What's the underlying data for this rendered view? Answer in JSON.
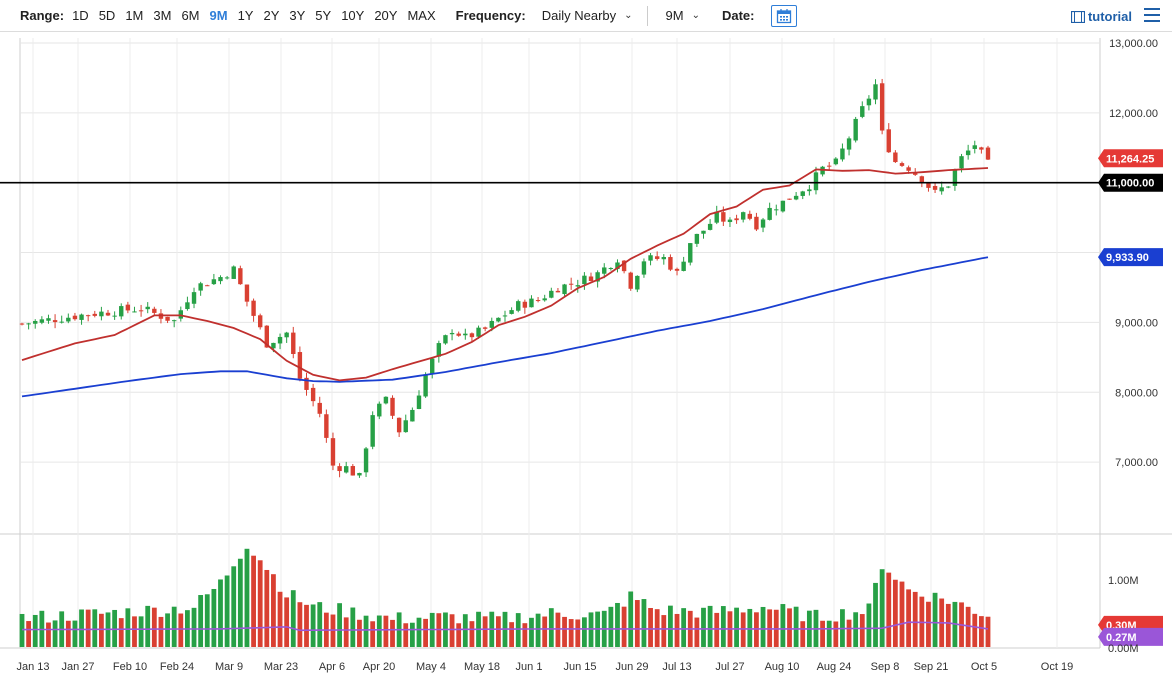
{
  "toolbar": {
    "range_label": "Range:",
    "ranges": [
      "1D",
      "5D",
      "1M",
      "3M",
      "6M",
      "9M",
      "1Y",
      "2Y",
      "3Y",
      "5Y",
      "10Y",
      "20Y",
      "MAX"
    ],
    "active_range": "9M",
    "frequency_label": "Frequency:",
    "frequency_value": "Daily Nearby",
    "period_value": "9M",
    "date_label": "Date:",
    "tutorial_label": "tutorial",
    "accent_color": "#2f7ed8"
  },
  "chart_data": {
    "type": "candlestick",
    "y_ticks": [
      "13,000.00",
      "12,000.00",
      "9,000.00",
      "8,000.00",
      "7,000.00"
    ],
    "y_range": [
      6300,
      13000
    ],
    "x_ticks": [
      "Jan 13",
      "Jan 27",
      "Feb 10",
      "Feb 24",
      "Mar 9",
      "Mar 23",
      "Apr 6",
      "Apr 20",
      "May 4",
      "May 18",
      "Jun 1",
      "Jun 15",
      "Jun 29",
      "Jul 13",
      "Jul 27",
      "Aug 10",
      "Aug 24",
      "Sep 8",
      "Sep 21",
      "Oct 5",
      "Oct 19"
    ],
    "price_path": [
      [
        0,
        8980
      ],
      [
        10,
        9120
      ],
      [
        18,
        9200
      ],
      [
        23,
        9020
      ],
      [
        26,
        9500
      ],
      [
        30,
        9650
      ],
      [
        32,
        9760
      ],
      [
        34,
        9300
      ],
      [
        37,
        8700
      ],
      [
        40,
        8850
      ],
      [
        42,
        8200
      ],
      [
        45,
        7700
      ],
      [
        47,
        6950
      ],
      [
        49,
        6920
      ],
      [
        51,
        6780
      ],
      [
        53,
        7700
      ],
      [
        55,
        7880
      ],
      [
        57,
        7450
      ],
      [
        59,
        7760
      ],
      [
        61,
        8250
      ],
      [
        63,
        8650
      ],
      [
        65,
        8900
      ],
      [
        67,
        8780
      ],
      [
        70,
        8900
      ],
      [
        72,
        9050
      ],
      [
        75,
        9250
      ],
      [
        78,
        9320
      ],
      [
        81,
        9500
      ],
      [
        84,
        9580
      ],
      [
        87,
        9700
      ],
      [
        90,
        9920
      ],
      [
        92,
        9540
      ],
      [
        94,
        9900
      ],
      [
        97,
        9920
      ],
      [
        99,
        9700
      ],
      [
        101,
        10150
      ],
      [
        103,
        10320
      ],
      [
        105,
        10520
      ],
      [
        107,
        10420
      ],
      [
        109,
        10600
      ],
      [
        111,
        10400
      ],
      [
        113,
        10620
      ],
      [
        115,
        10720
      ],
      [
        117,
        10850
      ],
      [
        119,
        10970
      ],
      [
        121,
        11200
      ],
      [
        123,
        11280
      ],
      [
        125,
        11650
      ],
      [
        127,
        12050
      ],
      [
        129,
        12400
      ],
      [
        130,
        11700
      ],
      [
        132,
        11300
      ],
      [
        134,
        11220
      ],
      [
        136,
        11050
      ],
      [
        138,
        10850
      ],
      [
        140,
        10980
      ],
      [
        142,
        11350
      ],
      [
        144,
        11550
      ],
      [
        146,
        11264
      ]
    ],
    "ma50": [
      [
        0,
        8460
      ],
      [
        8,
        8700
      ],
      [
        14,
        8820
      ],
      [
        20,
        9100
      ],
      [
        24,
        9100
      ],
      [
        28,
        9020
      ],
      [
        32,
        8920
      ],
      [
        36,
        8760
      ],
      [
        40,
        8450
      ],
      [
        44,
        8250
      ],
      [
        48,
        8170
      ],
      [
        52,
        8210
      ],
      [
        56,
        8330
      ],
      [
        60,
        8440
      ],
      [
        64,
        8550
      ],
      [
        68,
        8720
      ],
      [
        72,
        8960
      ],
      [
        76,
        9080
      ],
      [
        80,
        9240
      ],
      [
        84,
        9490
      ],
      [
        88,
        9650
      ],
      [
        92,
        9910
      ],
      [
        96,
        10100
      ],
      [
        100,
        10270
      ],
      [
        104,
        10550
      ],
      [
        108,
        10660
      ],
      [
        112,
        10900
      ],
      [
        116,
        10960
      ],
      [
        120,
        11190
      ],
      [
        124,
        11170
      ],
      [
        128,
        11180
      ],
      [
        132,
        11130
      ],
      [
        136,
        11150
      ],
      [
        140,
        11180
      ],
      [
        146,
        11210
      ]
    ],
    "ma200": [
      [
        0,
        7940
      ],
      [
        8,
        8050
      ],
      [
        16,
        8160
      ],
      [
        24,
        8260
      ],
      [
        30,
        8300
      ],
      [
        34,
        8300
      ],
      [
        40,
        8200
      ],
      [
        44,
        8160
      ],
      [
        48,
        8150
      ],
      [
        56,
        8180
      ],
      [
        64,
        8290
      ],
      [
        72,
        8430
      ],
      [
        80,
        8560
      ],
      [
        88,
        8720
      ],
      [
        96,
        8880
      ],
      [
        104,
        9020
      ],
      [
        112,
        9190
      ],
      [
        120,
        9390
      ],
      [
        128,
        9580
      ],
      [
        136,
        9750
      ],
      [
        146,
        9934
      ]
    ],
    "last_price_label": "11,264.25",
    "ma50_label": "11,000.00",
    "ma200_label": "9,933.90",
    "reference_line": 11000,
    "volume_ticks": [
      "1.00M",
      "0.00M"
    ],
    "volume_label": "0.27M",
    "volume_hidden_label": "0.30M",
    "volume_max": 1.55,
    "volume_path": [
      [
        0,
        0.43
      ],
      [
        20,
        0.55
      ],
      [
        26,
        0.6
      ],
      [
        30,
        0.95
      ],
      [
        34,
        1.55
      ],
      [
        37,
        1.2
      ],
      [
        40,
        0.8
      ],
      [
        44,
        0.6
      ],
      [
        48,
        0.55
      ],
      [
        56,
        0.42
      ],
      [
        64,
        0.45
      ],
      [
        72,
        0.42
      ],
      [
        80,
        0.5
      ],
      [
        88,
        0.48
      ],
      [
        92,
        0.75
      ],
      [
        96,
        0.55
      ],
      [
        104,
        0.52
      ],
      [
        112,
        0.6
      ],
      [
        120,
        0.45
      ],
      [
        128,
        0.55
      ],
      [
        130,
        1.25
      ],
      [
        134,
        0.85
      ],
      [
        140,
        0.7
      ],
      [
        146,
        0.48
      ]
    ],
    "volume_avg_path": [
      [
        0,
        0.26
      ],
      [
        30,
        0.27
      ],
      [
        40,
        0.3
      ],
      [
        42,
        0.25
      ],
      [
        60,
        0.26
      ],
      [
        80,
        0.27
      ],
      [
        100,
        0.27
      ],
      [
        120,
        0.27
      ],
      [
        130,
        0.28
      ],
      [
        134,
        0.37
      ],
      [
        140,
        0.36
      ],
      [
        146,
        0.27
      ]
    ],
    "colors": {
      "up": "#27a046",
      "down": "#d94032",
      "ma50": "#c0302e",
      "ma200": "#1a3fd1",
      "vol_avg": "#9a56d8",
      "last_tag": "#e53935",
      "ma200_tag": "#1a3fd1",
      "ref_tag": "#000000",
      "vol_tag": "#9a56d8",
      "vol_hidden_tag": "#e53935"
    }
  }
}
